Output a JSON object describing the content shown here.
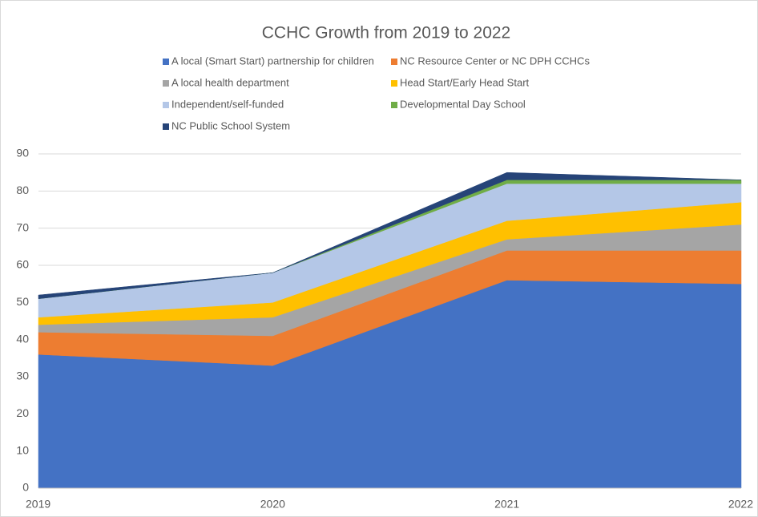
{
  "chart_data": {
    "type": "stacked_area",
    "title": "CCHC Growth from 2019 to 2022",
    "categories": [
      "2019",
      "2020",
      "2021",
      "2022"
    ],
    "series": [
      {
        "name": "A local (Smart Start) partnership for children",
        "color": "#4472c4",
        "values": [
          36,
          33,
          56,
          55
        ]
      },
      {
        "name": "NC Resource Center or NC DPH CCHCs",
        "color": "#ed7d31",
        "values": [
          6,
          8,
          8,
          9
        ]
      },
      {
        "name": "A local health department",
        "color": "#a5a5a5",
        "values": [
          2,
          5,
          3,
          7
        ]
      },
      {
        "name": "Head Start/Early Head Start",
        "color": "#ffc000",
        "values": [
          2,
          4,
          5,
          6
        ]
      },
      {
        "name": "Independent/self-funded",
        "color": "#b4c7e7",
        "values": [
          5,
          8,
          10,
          5
        ]
      },
      {
        "name": "Developmental Day School",
        "color": "#70ad47",
        "values": [
          0,
          0,
          1,
          1
        ]
      },
      {
        "name": "NC Public School System",
        "color": "#264478",
        "values": [
          1,
          0,
          2,
          0
        ]
      }
    ],
    "ylim": [
      0,
      90
    ],
    "yticks": [
      0,
      10,
      20,
      30,
      40,
      50,
      60,
      70,
      80,
      90
    ],
    "grid": true,
    "legend": "top"
  }
}
